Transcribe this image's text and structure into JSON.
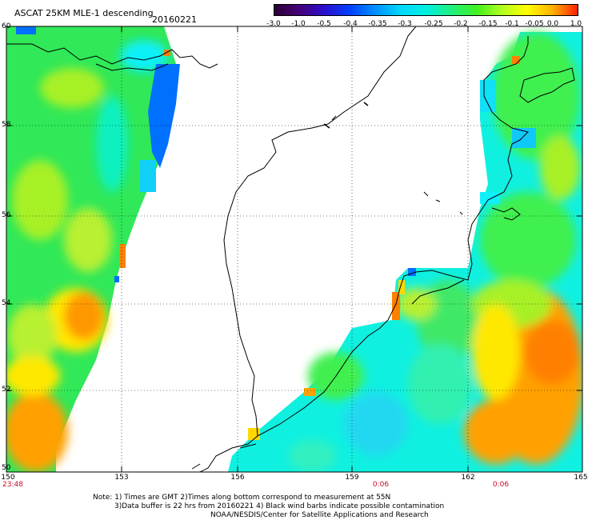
{
  "header": {
    "title": "ASCAT 25KM MLE-1 descending",
    "date": "20160221"
  },
  "colorbar": {
    "labels": [
      "-3.0",
      "-1.0",
      "-0.5",
      "-0.4",
      "-0.35",
      "-0.3",
      "-0.25",
      "-0.2",
      "-0.15",
      "-0.1",
      "-0.05",
      "0.0",
      "1.0"
    ],
    "colors": [
      "#2a0034",
      "#45007a",
      "#2a10d0",
      "#0040ff",
      "#0090ff",
      "#00d8ff",
      "#00f0e0",
      "#20f080",
      "#40f020",
      "#b0ff20",
      "#ffff00",
      "#ffb000",
      "#ff2000"
    ]
  },
  "axes": {
    "lat_labels": [
      "60",
      "58",
      "56",
      "54",
      "52",
      "50"
    ],
    "lon_labels": [
      "150",
      "153",
      "156",
      "159",
      "162",
      "165"
    ],
    "time_labels": [
      "23:48",
      "0:06",
      "0:06"
    ]
  },
  "notes": [
    "Note: 1) Times are GMT 2)Times along bottom correspond to measurement at 55N",
    "3)Data buffer is 22 hrs from 20160221 4) Black wind barbs indicate possible contamination",
    "NOAA/NESDIS/Center for Satellite Applications and Research"
  ],
  "palette": {
    "green": "#30e858",
    "yellow_green": "#a8f028",
    "yellow": "#ffe800",
    "orange": "#ff8000",
    "cyan": "#10f0f8",
    "blue": "#0070ff"
  }
}
